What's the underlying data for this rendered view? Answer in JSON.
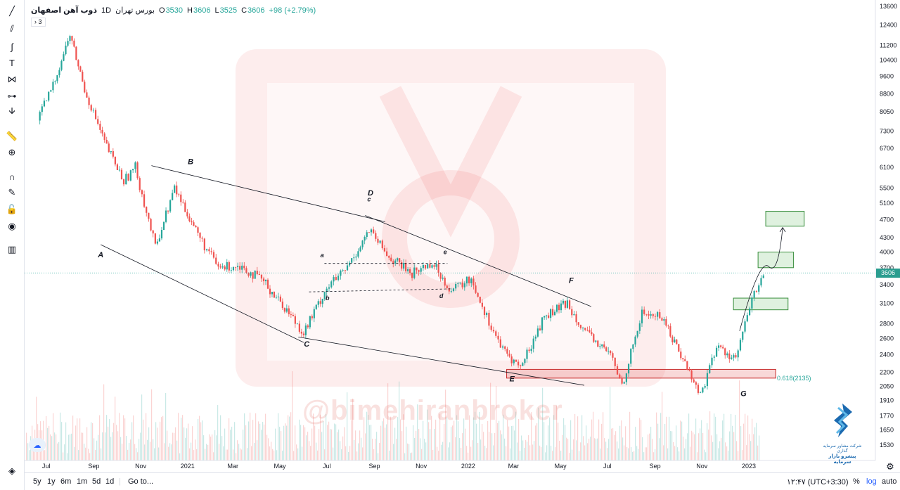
{
  "legend": {
    "symbol": "ذوب آهن اصفهان",
    "interval": "1D",
    "exchange": "بورس تهران",
    "open_label": "O",
    "open": "3530",
    "high_label": "H",
    "high": "3606",
    "low_label": "L",
    "low": "3525",
    "close_label": "C",
    "close": "3606",
    "change": "+98 (+2.79%)",
    "collapsed_count": "3"
  },
  "toolbar": {
    "icons": [
      "trend-line-icon",
      "fib-icon",
      "brush-icon",
      "text-icon",
      "pattern-icon",
      "prediction-icon",
      "arrow-cursor-icon",
      "ruler-icon",
      "zoom-icon",
      "magnet-icon",
      "lock-draw-icon",
      "lock-icon",
      "eye-icon",
      "trash-icon",
      "layers-icon"
    ]
  },
  "bottombar": {
    "ranges": [
      "5y",
      "1y",
      "6m",
      "1m",
      "5d",
      "1d"
    ],
    "goto": "Go to...",
    "time": "۱۲:۴۷ (UTC+3:30)",
    "percent": "%",
    "log": "log",
    "auto": "auto"
  },
  "watermark": "@bimehiranbroker",
  "brand": {
    "line1": "شرکت مشاور سرمایه گذاری",
    "line2": "پیشرو بازار سرمایه"
  },
  "price_tag": "3606",
  "fib_label": "0.618(2135)",
  "colors": {
    "up": "#26a69a",
    "down": "#ef5350",
    "zone_green": "#4caf50",
    "zone_red": "#e57373"
  },
  "chart_data": {
    "type": "candlestick",
    "y_scale": "log",
    "ylim": [
      1450,
      13600
    ],
    "y_ticks": [
      13600,
      12400,
      11200,
      10400,
      9600,
      8800,
      8050,
      7300,
      6700,
      6100,
      5500,
      5100,
      4700,
      4300,
      4000,
      3700,
      3400,
      3100,
      2800,
      2600,
      2400,
      2200,
      2050,
      1910,
      1770,
      1650,
      1530
    ],
    "x_ticks": [
      "Jul",
      "Sep",
      "Nov",
      "2021",
      "Mar",
      "May",
      "Jul",
      "Sep",
      "Nov",
      "2022",
      "Mar",
      "May",
      "Jul",
      "Sep",
      "Nov",
      "2023"
    ],
    "last_price": 3606,
    "close_path": [
      {
        "x": "2020-06-20",
        "y": 7700
      },
      {
        "x": "2020-07-10",
        "y": 9200
      },
      {
        "x": "2020-08-01",
        "y": 11800
      },
      {
        "x": "2020-08-20",
        "y": 9000
      },
      {
        "x": "2020-09-15",
        "y": 6900
      },
      {
        "x": "2020-10-10",
        "y": 5700
      },
      {
        "x": "2020-10-25",
        "y": 6100
      },
      {
        "x": "2020-11-20",
        "y": 4100
      },
      {
        "x": "2020-12-15",
        "y": 5500
      },
      {
        "x": "2021-01-20",
        "y": 4200
      },
      {
        "x": "2021-02-10",
        "y": 3700
      },
      {
        "x": "2021-03-10",
        "y": 3750
      },
      {
        "x": "2021-04-10",
        "y": 3450
      },
      {
        "x": "2021-05-10",
        "y": 3000
      },
      {
        "x": "2021-06-01",
        "y": 2680
      },
      {
        "x": "2021-07-01",
        "y": 3350
      },
      {
        "x": "2021-07-25",
        "y": 3650
      },
      {
        "x": "2021-08-25",
        "y": 4450
      },
      {
        "x": "2021-09-20",
        "y": 3900
      },
      {
        "x": "2021-10-20",
        "y": 3600
      },
      {
        "x": "2021-11-15",
        "y": 3800
      },
      {
        "x": "2021-12-10",
        "y": 3300
      },
      {
        "x": "2022-01-05",
        "y": 3500
      },
      {
        "x": "2022-01-25",
        "y": 2900
      },
      {
        "x": "2022-02-15",
        "y": 2450
      },
      {
        "x": "2022-03-10",
        "y": 2250
      },
      {
        "x": "2022-04-10",
        "y": 2900
      },
      {
        "x": "2022-05-10",
        "y": 3100
      },
      {
        "x": "2022-06-05",
        "y": 2650
      },
      {
        "x": "2022-07-05",
        "y": 2400
      },
      {
        "x": "2022-07-20",
        "y": 2060
      },
      {
        "x": "2022-08-15",
        "y": 2950
      },
      {
        "x": "2022-09-10",
        "y": 2900
      },
      {
        "x": "2022-10-10",
        "y": 2300
      },
      {
        "x": "2022-10-30",
        "y": 1960
      },
      {
        "x": "2022-11-20",
        "y": 2500
      },
      {
        "x": "2022-12-15",
        "y": 2350
      },
      {
        "x": "2023-01-05",
        "y": 3150
      },
      {
        "x": "2023-01-20",
        "y": 3606
      }
    ],
    "annotations": {
      "wave_labels": [
        {
          "text": "A",
          "x": "2020-09-10",
          "y": 3900
        },
        {
          "text": "B",
          "x": "2021-01-05",
          "y": 6200
        },
        {
          "text": "C",
          "x": "2021-06-05",
          "y": 2500
        },
        {
          "text": "D",
          "x": "2021-08-27",
          "y": 5300
        },
        {
          "text": "E",
          "x": "2022-02-27",
          "y": 2100
        },
        {
          "text": "F",
          "x": "2022-05-15",
          "y": 3430
        },
        {
          "text": "G",
          "x": "2022-12-25",
          "y": 1950
        },
        {
          "text": "a",
          "x": "2021-06-25",
          "y": 3900
        },
        {
          "text": "b",
          "x": "2021-07-02",
          "y": 3150
        },
        {
          "text": "c",
          "x": "2021-08-25",
          "y": 5150
        },
        {
          "text": "d",
          "x": "2021-11-27",
          "y": 3180
        },
        {
          "text": "e",
          "x": "2021-12-02",
          "y": 3960
        }
      ],
      "zones": [
        {
          "color": "red",
          "x1": "2022-02-20",
          "x2": "2023-02-05",
          "y1": 2135,
          "y2": 2230
        },
        {
          "color": "green",
          "x1": "2022-12-12",
          "x2": "2023-02-21",
          "y1": 3000,
          "y2": 3180
        },
        {
          "color": "green",
          "x1": "2023-01-13",
          "x2": "2023-02-28",
          "y1": 3700,
          "y2": 4000
        },
        {
          "color": "green",
          "x1": "2023-01-23",
          "x2": "2023-03-14",
          "y1": 4550,
          "y2": 4900
        }
      ]
    }
  }
}
